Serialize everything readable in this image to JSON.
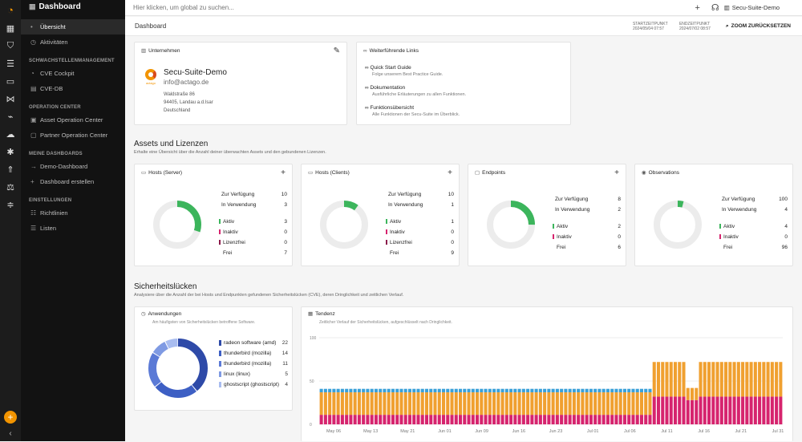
{
  "sidebar": {
    "title": "Dashboard",
    "items": [
      {
        "label": "Übersicht",
        "active": true
      },
      {
        "label": "Aktivitäten"
      }
    ],
    "sections": [
      {
        "label": "SCHWACHSTELLENMANAGEMENT",
        "items": [
          {
            "label": "CVE Cockpit"
          },
          {
            "label": "CVE-DB"
          }
        ]
      },
      {
        "label": "OPERATION CENTER",
        "items": [
          {
            "label": "Asset Operation Center"
          },
          {
            "label": "Partner Operation Center"
          }
        ]
      },
      {
        "label": "MEINE DASHBOARDS",
        "items": [
          {
            "label": "Demo-Dashboard"
          },
          {
            "label": "Dashboard erstellen"
          }
        ]
      },
      {
        "label": "EINSTELLUNGEN",
        "items": [
          {
            "label": "Richtlinien"
          },
          {
            "label": "Listen"
          }
        ]
      }
    ]
  },
  "topbar": {
    "search_placeholder": "Hier klicken, um global zu suchen...",
    "user": "Secu-Suite-Demo"
  },
  "header": {
    "title": "Dashboard",
    "start_label": "STARTZEITPUNKT",
    "start_value": "2024/05/04 07:57",
    "end_label": "ENDZEITPUNKT",
    "end_value": "2024/07/02 08:57",
    "zoom": "ZOOM ZURÜCKSETZEN"
  },
  "company": {
    "header": "Unternehmen",
    "name": "Secu-Suite-Demo",
    "email": "info@actago.de",
    "street": "Waldstraße 86",
    "city": "94405, Landau a.d.Isar",
    "country": "Deutschland",
    "logo_text": "actago"
  },
  "links": {
    "header": "Weiterführende Links",
    "items": [
      {
        "title": "Quick Start Guide",
        "desc": "Folge unserem Best Practice Guide."
      },
      {
        "title": "Dokumentation",
        "desc": "Ausführliche Erläuterungen zu allen Funktionen."
      },
      {
        "title": "Funktionsübersicht",
        "desc": "Alle Funktionen der Secu-Suite im Überblick."
      }
    ]
  },
  "assets": {
    "title": "Assets und Lizenzen",
    "subtitle": "Erhalte eine Übersicht über die Anzahl deiner überwachten Assets und den gebundenen Lizenzen."
  },
  "license_cards": [
    {
      "title": "Hosts (Server)",
      "avail_label": "Zur Verfügung",
      "avail": "10",
      "use_label": "In Verwendung",
      "use": "3",
      "fraction": 0.3,
      "rows": [
        {
          "label": "Aktiv",
          "value": "3",
          "color": "#3cb55c"
        },
        {
          "label": "Inaktiv",
          "value": "0",
          "color": "#d6246e"
        },
        {
          "label": "Lizenzfrei",
          "value": "0",
          "color": "#8b1a4a"
        },
        {
          "label": "Frei",
          "value": "7",
          "color": ""
        }
      ]
    },
    {
      "title": "Hosts (Clients)",
      "avail_label": "Zur Verfügung",
      "avail": "10",
      "use_label": "In Verwendung",
      "use": "1",
      "fraction": 0.1,
      "rows": [
        {
          "label": "Aktiv",
          "value": "1",
          "color": "#3cb55c"
        },
        {
          "label": "Inaktiv",
          "value": "0",
          "color": "#d6246e"
        },
        {
          "label": "Lizenzfrei",
          "value": "0",
          "color": "#8b1a4a"
        },
        {
          "label": "Frei",
          "value": "9",
          "color": ""
        }
      ]
    },
    {
      "title": "Endpoints",
      "avail_label": "Zur Verfügung",
      "avail": "8",
      "use_label": "In Verwendung",
      "use": "2",
      "fraction": 0.25,
      "rows": [
        {
          "label": "Aktiv",
          "value": "2",
          "color": "#3cb55c"
        },
        {
          "label": "Inaktiv",
          "value": "0",
          "color": "#d6246e"
        },
        {
          "label": "Frei",
          "value": "6",
          "color": ""
        }
      ]
    },
    {
      "title": "Observations",
      "avail_label": "Zur Verfügung",
      "avail": "100",
      "use_label": "In Verwendung",
      "use": "4",
      "fraction": 0.04,
      "rows": [
        {
          "label": "Aktiv",
          "value": "4",
          "color": "#3cb55c"
        },
        {
          "label": "Inaktiv",
          "value": "0",
          "color": "#d6246e"
        },
        {
          "label": "Frei",
          "value": "96",
          "color": ""
        }
      ]
    }
  ],
  "vulns": {
    "title": "Sicherheitslücken",
    "subtitle": "Analysiere über die Anzahl der bei Hosts und Endpunkten gefundenen Sicherheitslücken (CVE), deren Dringlichkeit und zeitlichen Verlauf."
  },
  "apps": {
    "header": "Anwendungen",
    "subtitle": "Am häufigsten von Sicherheitslücken betroffene Software.",
    "items": [
      {
        "label": "radeon software (amd)",
        "value": 22,
        "color": "#2e4aa8"
      },
      {
        "label": "thunderbird (mozilla)",
        "value": 14,
        "color": "#3d5fc4"
      },
      {
        "label": "thunderbird (mozilla)",
        "value": 11,
        "color": "#5b7ad6"
      },
      {
        "label": "linux (linux)",
        "value": 5,
        "color": "#7f9ae3"
      },
      {
        "label": "ghostscript (ghostscript)",
        "value": 4,
        "color": "#a9bdf0"
      }
    ]
  },
  "trend": {
    "header": "Tendenz",
    "subtitle": "Zeitlicher Verlauf der Sicherheitslücken, aufgeschlüsselt nach Dringlichkeit."
  },
  "chart_data": {
    "type": "bar",
    "stacked": true,
    "ylim": [
      0,
      100
    ],
    "yticks": [
      0,
      50,
      100
    ],
    "xticks": [
      "May 06",
      "May 13",
      "May 21",
      "Jun 01",
      "Jun 09",
      "Jun 16",
      "Jun 23",
      "Jul 01",
      "Jul 06",
      "Jul 11",
      "Jul 16",
      "Jul 21",
      "Jul 31"
    ],
    "series": [
      {
        "color": "#d6246e",
        "pattern": [
          {
            "from": 0,
            "to": 78,
            "value": 11
          },
          {
            "from": 79,
            "to": 86,
            "value": 32
          },
          {
            "from": 87,
            "to": 89,
            "value": 28
          },
          {
            "from": 90,
            "to": 109,
            "value": 32
          }
        ]
      },
      {
        "color": "#f0a030",
        "pattern": [
          {
            "from": 0,
            "to": 78,
            "value": 26
          },
          {
            "from": 79,
            "to": 86,
            "value": 40
          },
          {
            "from": 87,
            "to": 89,
            "value": 14
          },
          {
            "from": 90,
            "to": 109,
            "value": 40
          }
        ]
      },
      {
        "color": "#3aa0d8",
        "pattern": [
          {
            "from": 0,
            "to": 78,
            "value": 4
          },
          {
            "from": 79,
            "to": 109,
            "value": 0
          }
        ]
      }
    ],
    "bars": 110
  }
}
